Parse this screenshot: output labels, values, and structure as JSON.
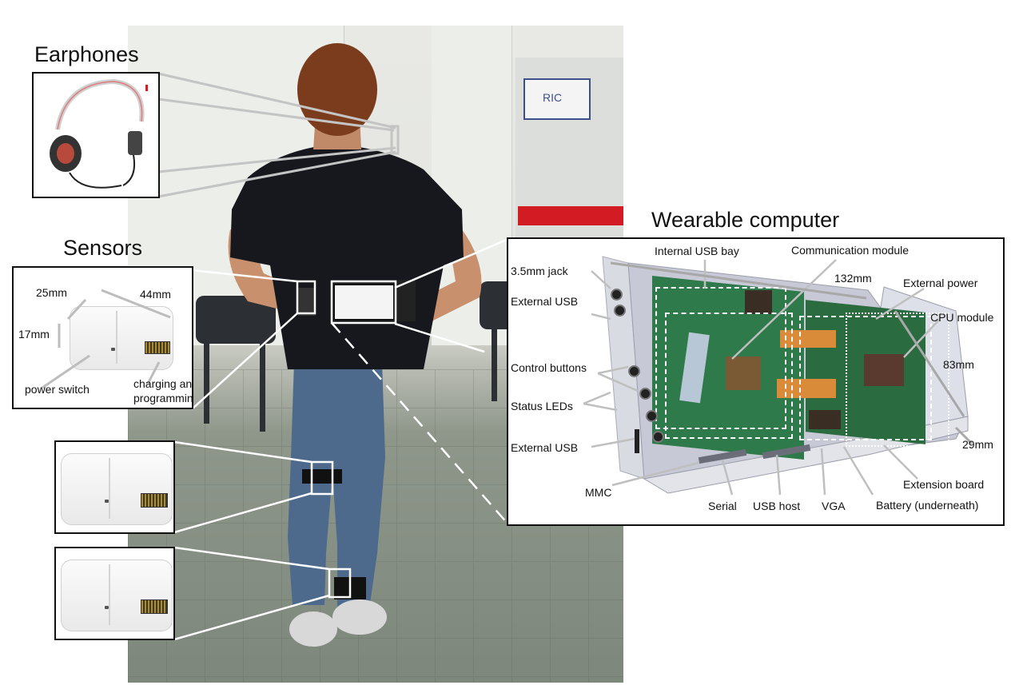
{
  "titles": {
    "earphones": "Earphones",
    "sensors": "Sensors",
    "wearable": "Wearable computer"
  },
  "sensor_labels": {
    "w": "25mm",
    "l": "44mm",
    "h": "17mm",
    "power_switch": "power switch",
    "charging_line1": "charging and",
    "charging_line2": "programming"
  },
  "device_labels": {
    "jack": "3.5mm jack",
    "ext_usb_top": "External USB",
    "control_buttons": "Control buttons",
    "status_leds": "Status LEDs",
    "ext_usb_bottom": "External USB",
    "mmc": "MMC",
    "serial": "Serial",
    "usb_host": "USB host",
    "vga": "VGA",
    "battery": "Battery (underneath)",
    "extension_board": "Extension board",
    "internal_usb_bay": "Internal USB bay",
    "comm_module": "Communication module",
    "length": "132mm",
    "external_power": "External power",
    "cpu_module": "CPU module",
    "width": "83mm",
    "height": "29mm"
  },
  "photo_sign": "RIC",
  "colors": {
    "callout_line": "#c4c4c4",
    "box_border": "#111111",
    "stripe": "#d21b22",
    "shirt": "#16181d",
    "jeans": "#4d6a8c"
  }
}
